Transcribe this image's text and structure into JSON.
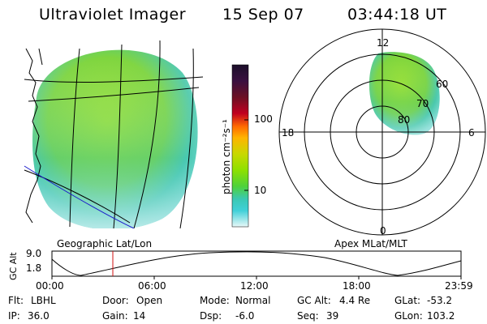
{
  "header": {
    "instrument": "Ultraviolet Imager",
    "date": "15 Sep 07",
    "time": "03:44:18 UT"
  },
  "panels": {
    "geographic_label": "Geographic Lat/Lon",
    "apex_label": "Apex MLat/MLT"
  },
  "colorbar": {
    "unit_label": "photon cm⁻²s⁻¹",
    "ticks": [
      "100",
      "10"
    ],
    "colors": [
      "#1b0f2a",
      "#3a1040",
      "#6b1024",
      "#a8001e",
      "#e00020",
      "#ff6a00",
      "#ffb400",
      "#c8d800",
      "#8ee000",
      "#4ed23a",
      "#3ac8b4",
      "#40d0d8",
      "#b4ecec",
      "#e8f8f8"
    ]
  },
  "polar_plot": {
    "mlt_labels": [
      "12",
      "18",
      "6",
      "0"
    ],
    "mlat_labels": [
      "60",
      "70",
      "80"
    ]
  },
  "altitude_plot": {
    "axis_label": "GC Alt",
    "y_ticks": [
      "9.0",
      "1.8"
    ],
    "x_ticks": [
      "00:00",
      "06:00",
      "12:00",
      "18:00",
      "23:59"
    ],
    "marker_time": "03:44"
  },
  "info": {
    "filter_label": "Flt:",
    "filter_value": "LBHL",
    "ip_label": "IP:",
    "ip_value": "36.0",
    "door_label": "Door:",
    "door_value": "Open",
    "gain_label": "Gain:",
    "gain_value": "14",
    "mode_label": "Mode:",
    "mode_value": "Normal",
    "dsp_label": "Dsp:",
    "dsp_value": "-6.0",
    "gcalt_label": "GC Alt:",
    "gcalt_value": "4.4 Re",
    "seq_label": "Seq:",
    "seq_value": "39",
    "glat_label": "GLat:",
    "glat_value": "-53.2",
    "glon_label": "GLon:",
    "glon_value": "103.2"
  },
  "colors": {
    "emission_green": "#8ed82a",
    "emission_cyan": "#46ccc0",
    "marker": "#d01010"
  }
}
